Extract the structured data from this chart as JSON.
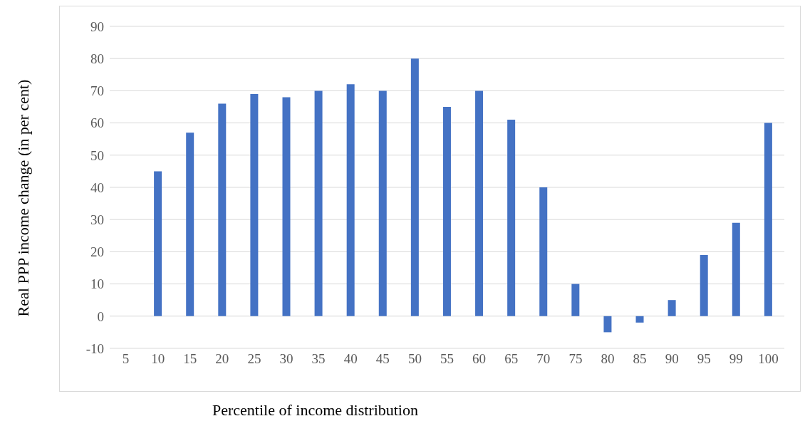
{
  "chart_data": {
    "type": "bar",
    "xlabel": "Percentile of income distribution",
    "ylabel": "Real PPP income change (in per cent)",
    "categories": [
      "5",
      "10",
      "15",
      "20",
      "25",
      "30",
      "35",
      "40",
      "45",
      "50",
      "55",
      "60",
      "65",
      "70",
      "75",
      "80",
      "85",
      "90",
      "95",
      "99",
      "100"
    ],
    "values": [
      null,
      45,
      57,
      66,
      69,
      68,
      70,
      72,
      70,
      80,
      65,
      70,
      61,
      40,
      10,
      -5,
      -2,
      5,
      19,
      29,
      60
    ],
    "color": "#4472c4",
    "ylim": [
      -10,
      90
    ],
    "yticks": [
      -10,
      0,
      10,
      20,
      30,
      40,
      50,
      60,
      70,
      80,
      90
    ],
    "grid": "y"
  }
}
